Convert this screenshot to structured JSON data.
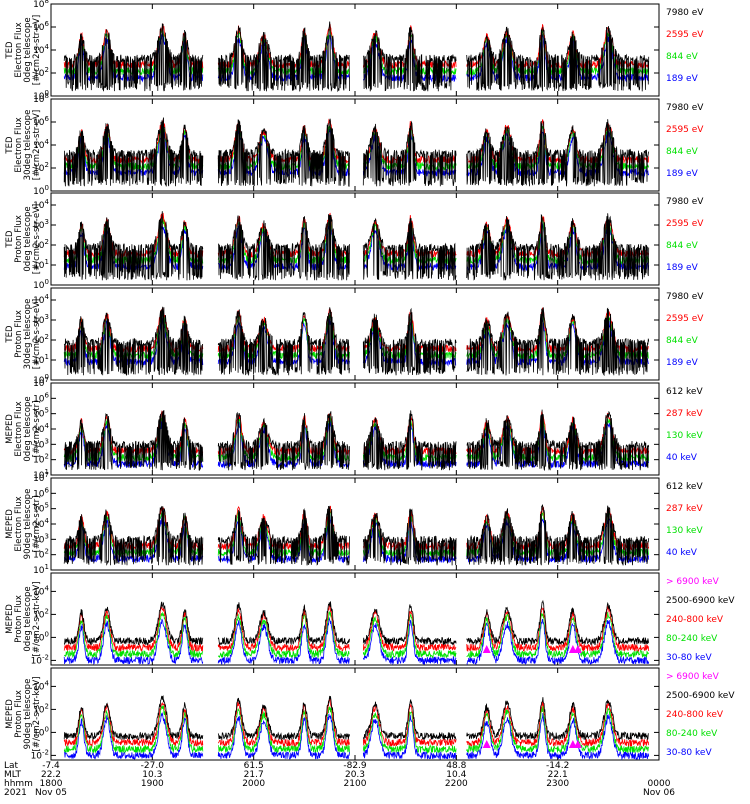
{
  "chart_data": {
    "type": "line",
    "panels": [
      {
        "ylabel": [
          "TED",
          "Electron Flux",
          "0deg telescope",
          "[#/cm2-s-str-eV]"
        ],
        "ticks": [
          "10^0",
          "10^2",
          "10^4",
          "10^6",
          "10^8"
        ],
        "ylim": [
          0,
          8
        ],
        "legend": [
          {
            "name": "7980 eV",
            "color": "#000000"
          },
          {
            "name": "2595 eV",
            "color": "#ff0000"
          },
          {
            "name": "844 eV",
            "color": "#00e000"
          },
          {
            "name": "189 eV",
            "color": "#0000ff"
          }
        ],
        "profile": "ted_e0"
      },
      {
        "ylabel": [
          "TED",
          "Electron Flux",
          "30deg telescope",
          "[#/cm2-s-str-eV]"
        ],
        "ticks": [
          "10^0",
          "10^2",
          "10^4",
          "10^6",
          "10^8"
        ],
        "ylim": [
          0,
          8
        ],
        "legend": [
          {
            "name": "7980 eV",
            "color": "#000000"
          },
          {
            "name": "2595 eV",
            "color": "#ff0000"
          },
          {
            "name": "844 eV",
            "color": "#00e000"
          },
          {
            "name": "189 eV",
            "color": "#0000ff"
          }
        ],
        "profile": "ted_e30"
      },
      {
        "ylabel": [
          "TED",
          "Proton Flux",
          "0deg telescope",
          "[#/cm2-s-str-eV]"
        ],
        "ticks": [
          "10^0",
          "10^1",
          "10^2",
          "10^3",
          "10^4"
        ],
        "ylim": [
          0,
          4.6
        ],
        "legend": [
          {
            "name": "7980 eV",
            "color": "#000000"
          },
          {
            "name": "2595 eV",
            "color": "#ff0000"
          },
          {
            "name": "844 eV",
            "color": "#00e000"
          },
          {
            "name": "189 eV",
            "color": "#0000ff"
          }
        ],
        "profile": "ted_p0"
      },
      {
        "ylabel": [
          "TED",
          "Proton Flux",
          "30deg telescope",
          "[#/cm2-s-str-eV]"
        ],
        "ticks": [
          "10^0",
          "10^1",
          "10^2",
          "10^3",
          "10^4"
        ],
        "ylim": [
          0,
          4.6
        ],
        "legend": [
          {
            "name": "7980 eV",
            "color": "#000000"
          },
          {
            "name": "2595 eV",
            "color": "#ff0000"
          },
          {
            "name": "844 eV",
            "color": "#00e000"
          },
          {
            "name": "189 eV",
            "color": "#0000ff"
          }
        ],
        "profile": "ted_p30"
      },
      {
        "ylabel": [
          "MEPED",
          "Electron Flux",
          "0deg telescope",
          "[#/cm2-s-str]"
        ],
        "ticks": [
          "10^1",
          "10^2",
          "10^3",
          "10^4",
          "10^5",
          "10^6",
          "10^7"
        ],
        "ylim": [
          1,
          7
        ],
        "legend": [
          {
            "name": "612 keV",
            "color": "#000000"
          },
          {
            "name": "287 keV",
            "color": "#ff0000"
          },
          {
            "name": "130 keV",
            "color": "#00e000"
          },
          {
            "name": "40 keV",
            "color": "#0000ff"
          }
        ],
        "profile": "mep_e0"
      },
      {
        "ylabel": [
          "MEPED",
          "Electron Flux",
          "90deg telescope",
          "[#/cm2-s-str]"
        ],
        "ticks": [
          "10^1",
          "10^2",
          "10^3",
          "10^4",
          "10^5",
          "10^6",
          "10^7"
        ],
        "ylim": [
          1,
          7
        ],
        "legend": [
          {
            "name": "612 keV",
            "color": "#000000"
          },
          {
            "name": "287 keV",
            "color": "#ff0000"
          },
          {
            "name": "130 keV",
            "color": "#00e000"
          },
          {
            "name": "40 keV",
            "color": "#0000ff"
          }
        ],
        "profile": "mep_e90"
      },
      {
        "ylabel": [
          "MEPED",
          "Proton Flux",
          "0deg telescope",
          "[#/cm2-s-str-keV]"
        ],
        "ticks": [
          "10^-2",
          "10^0",
          "10^2",
          "10^4"
        ],
        "ylim": [
          -2.4,
          5.6
        ],
        "legend": [
          {
            "name": "> 6900 keV",
            "color": "#ff00ff"
          },
          {
            "name": "2500-6900 keV",
            "color": "#000000"
          },
          {
            "name": "240-800 keV",
            "color": "#ff0000"
          },
          {
            "name": "80-240 keV",
            "color": "#00e000"
          },
          {
            "name": "30-80 keV",
            "color": "#0000ff"
          }
        ],
        "profile": "mep_p0"
      },
      {
        "ylabel": [
          "MEPED",
          "Proton Flux",
          "90deg telescope",
          "[#/cm2-s-str-keV]"
        ],
        "ticks": [
          "10^-2",
          "10^0",
          "10^2",
          "10^4"
        ],
        "ylim": [
          -2.4,
          5.6
        ],
        "legend": [
          {
            "name": "> 6900 keV",
            "color": "#ff00ff"
          },
          {
            "name": "2500-6900 keV",
            "color": "#000000"
          },
          {
            "name": "240-800 keV",
            "color": "#ff0000"
          },
          {
            "name": "80-240 keV",
            "color": "#00e000"
          },
          {
            "name": "30-80 keV",
            "color": "#0000ff"
          }
        ],
        "profile": "mep_p90"
      }
    ],
    "x_axis": {
      "row_labels": [
        "Lat",
        "MLT",
        "hhmm",
        "2021"
      ],
      "ticks": [
        {
          "lat": "-7.4",
          "mlt": "22.2",
          "hhmm": "1800",
          "date": "Nov 05"
        },
        {
          "lat": "-27.0",
          "mlt": "10.3",
          "hhmm": "1900",
          "date": ""
        },
        {
          "lat": "61.5",
          "mlt": "21.7",
          "hhmm": "2000",
          "date": ""
        },
        {
          "lat": "-82.9",
          "mlt": "20.3",
          "hhmm": "2100",
          "date": ""
        },
        {
          "lat": "48.8",
          "mlt": "10.4",
          "hhmm": "2200",
          "date": ""
        },
        {
          "lat": "-14.2",
          "mlt": "22.1",
          "hhmm": "2300",
          "date": ""
        },
        {
          "lat": "",
          "mlt": "",
          "hhmm": "0000",
          "date": "Nov 06"
        }
      ],
      "range_hours": [
        18,
        24
      ]
    },
    "passes_hours": [
      18.3,
      18.55,
      19.1,
      19.32,
      19.85,
      20.1,
      20.5,
      20.75,
      21.2,
      21.55,
      22.3,
      22.5,
      22.85,
      23.15,
      23.5
    ]
  }
}
